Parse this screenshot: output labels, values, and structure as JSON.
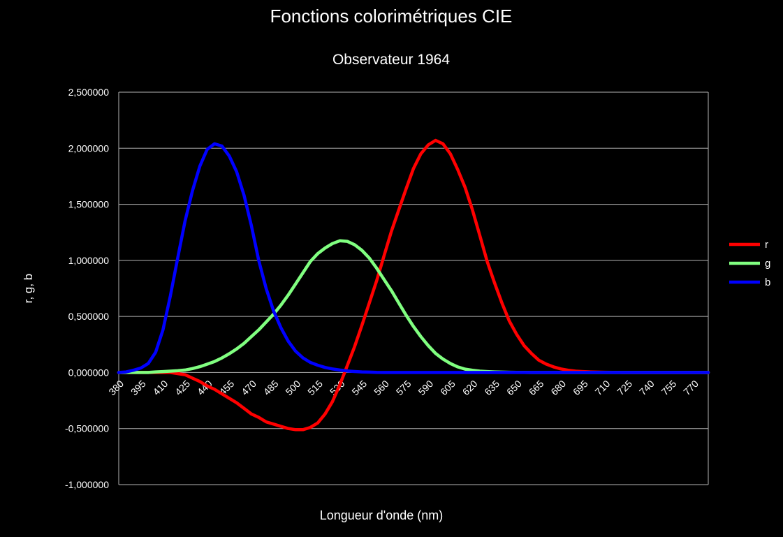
{
  "chart_data": {
    "type": "line",
    "title": "Fonctions colorimétriques CIE",
    "subtitle": "Observateur 1964",
    "xlabel": "Longueur d'onde (nm)",
    "ylabel": "r, g, b",
    "ylim": [
      -1.0,
      2.5
    ],
    "yticks": [
      "2,500000",
      "2,000000",
      "1,500000",
      "1,000000",
      "0,500000",
      "0,000000",
      "-0,500000",
      "-1,000000"
    ],
    "ytick_values": [
      2.5,
      2.0,
      1.5,
      1.0,
      0.5,
      0.0,
      -0.5,
      -1.0
    ],
    "xlim": [
      380,
      780
    ],
    "xticks": [
      380,
      395,
      410,
      425,
      440,
      455,
      470,
      485,
      500,
      515,
      530,
      545,
      560,
      575,
      590,
      605,
      620,
      635,
      650,
      665,
      680,
      695,
      710,
      725,
      740,
      755,
      770
    ],
    "grid": true,
    "legend_position": "right",
    "x": [
      380,
      385,
      390,
      395,
      400,
      405,
      410,
      415,
      420,
      425,
      430,
      435,
      440,
      445,
      450,
      455,
      460,
      465,
      470,
      475,
      480,
      485,
      490,
      495,
      500,
      505,
      510,
      515,
      520,
      525,
      530,
      535,
      540,
      545,
      550,
      555,
      560,
      565,
      570,
      575,
      580,
      585,
      590,
      595,
      600,
      605,
      610,
      615,
      620,
      625,
      630,
      635,
      640,
      645,
      650,
      655,
      660,
      665,
      670,
      675,
      680,
      685,
      690,
      695,
      700,
      705,
      710,
      715,
      720,
      725,
      730,
      735,
      740,
      745,
      750,
      755,
      760,
      765,
      770,
      775,
      780
    ],
    "series": [
      {
        "name": "r",
        "color": "#ff0000",
        "values": [
          0.0,
          0.0,
          0.0,
          0.0,
          0.0,
          0.0,
          0.0,
          0.0,
          -0.01,
          -0.02,
          -0.05,
          -0.08,
          -0.12,
          -0.15,
          -0.19,
          -0.23,
          -0.27,
          -0.32,
          -0.37,
          -0.4,
          -0.44,
          -0.46,
          -0.48,
          -0.5,
          -0.51,
          -0.51,
          -0.49,
          -0.45,
          -0.37,
          -0.26,
          -0.11,
          0.06,
          0.23,
          0.42,
          0.62,
          0.82,
          1.04,
          1.26,
          1.45,
          1.64,
          1.82,
          1.95,
          2.03,
          2.07,
          2.04,
          1.95,
          1.81,
          1.65,
          1.45,
          1.22,
          0.99,
          0.8,
          0.62,
          0.46,
          0.34,
          0.24,
          0.17,
          0.11,
          0.075,
          0.05,
          0.032,
          0.02,
          0.012,
          0.008,
          0.005,
          0.003,
          0.002,
          0.001,
          0.001,
          0.0,
          0.0,
          0.0,
          0.0,
          0.0,
          0.0,
          0.0,
          0.0,
          0.0,
          0.0,
          0.0,
          0.0
        ]
      },
      {
        "name": "g",
        "color": "#80ff80",
        "values": [
          0.0,
          0.0,
          0.0,
          0.0,
          0.0,
          0.005,
          0.008,
          0.012,
          0.016,
          0.022,
          0.035,
          0.052,
          0.074,
          0.098,
          0.13,
          0.168,
          0.21,
          0.26,
          0.32,
          0.38,
          0.45,
          0.52,
          0.6,
          0.69,
          0.79,
          0.89,
          0.99,
          1.06,
          1.11,
          1.15,
          1.175,
          1.17,
          1.14,
          1.09,
          1.02,
          0.93,
          0.83,
          0.73,
          0.62,
          0.51,
          0.41,
          0.32,
          0.24,
          0.17,
          0.12,
          0.08,
          0.05,
          0.03,
          0.02,
          0.012,
          0.008,
          0.005,
          0.003,
          0.002,
          0.001,
          0.001,
          0.0,
          0.0,
          0.0,
          0.0,
          0.0,
          0.0,
          0.0,
          0.0,
          0.0,
          0.0,
          0.0,
          0.0,
          0.0,
          0.0,
          0.0,
          0.0,
          0.0,
          0.0,
          0.0,
          0.0,
          0.0,
          0.0,
          0.0,
          0.0,
          0.0
        ]
      },
      {
        "name": "b",
        "color": "#0000ff",
        "values": [
          0.0,
          0.005,
          0.02,
          0.04,
          0.08,
          0.18,
          0.38,
          0.68,
          1.02,
          1.35,
          1.62,
          1.84,
          1.99,
          2.04,
          2.02,
          1.93,
          1.79,
          1.58,
          1.31,
          1.0,
          0.75,
          0.55,
          0.4,
          0.28,
          0.19,
          0.13,
          0.09,
          0.065,
          0.045,
          0.032,
          0.022,
          0.014,
          0.009,
          0.005,
          0.003,
          0.001,
          0.0,
          0.0,
          0.0,
          0.0,
          0.0,
          0.0,
          0.0,
          0.0,
          0.0,
          0.0,
          0.0,
          0.0,
          0.0,
          0.0,
          0.0,
          0.0,
          0.0,
          0.0,
          0.0,
          0.0,
          0.0,
          0.0,
          0.0,
          0.0,
          0.0,
          0.0,
          0.0,
          0.0,
          0.0,
          0.0,
          0.0,
          0.0,
          0.0,
          0.0,
          0.0,
          0.0,
          0.0,
          0.0,
          0.0,
          0.0,
          0.0,
          0.0,
          0.0,
          0.0,
          0.0
        ]
      }
    ]
  }
}
